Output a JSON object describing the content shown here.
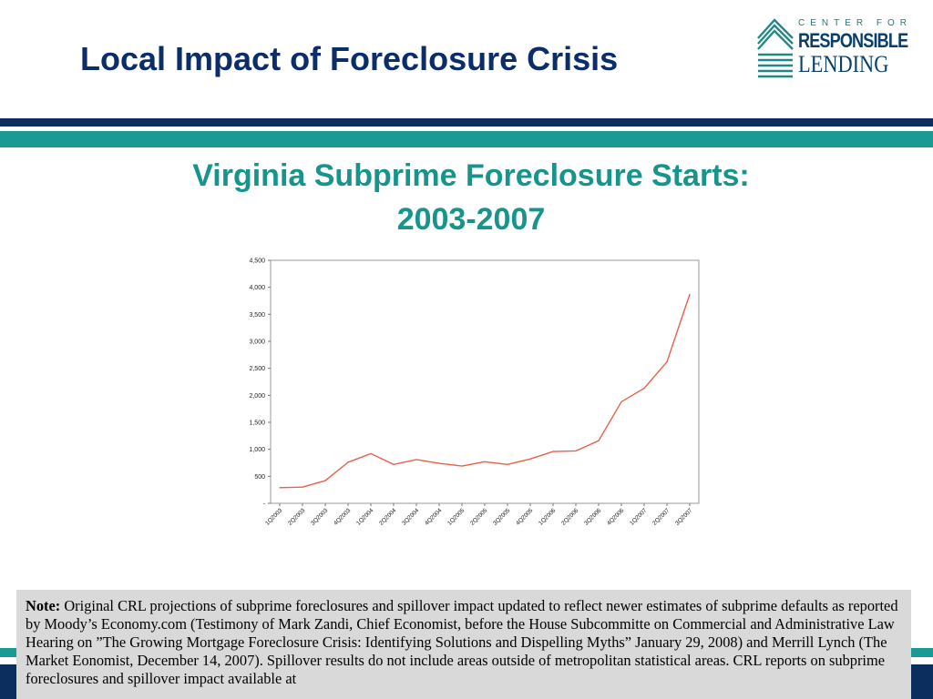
{
  "slide": {
    "title": "Local Impact of Foreclosure Crisis"
  },
  "logo": {
    "line1": "CENTER FOR",
    "line2": "RESPONSIBLE",
    "line3": "LENDING"
  },
  "chart_title": {
    "line1": "Virginia Subprime Foreclosure Starts:",
    "line2": "2003-2007"
  },
  "note": {
    "label": "Note:",
    "text": "Original CRL projections of subprime foreclosures and spillover impact updated to reflect newer estimates of subprime defaults as reported by Moody’s Economy.com (Testimony of Mark Zandi, Chief Economist, before the House Subcommitte on Commercial and Administrative Law Hearing on ”The Growing Mortgage Foreclosure Crisis: Identifying Solutions and Dispelling Myths” January 29, 2008) and Merrill Lynch (The Market Eonomist, December 14, 2007).  Spillover results do not include areas outside of metropolitan statistical areas.  CRL reports on subprime foreclosures and spillover impact available at"
  },
  "colors": {
    "navy": "#0b2e5e",
    "teal": "#1a9a92",
    "line": "#e8604a"
  },
  "chart_data": {
    "type": "line",
    "title": "",
    "xlabel": "",
    "ylabel": "",
    "ylim": [
      0,
      4500
    ],
    "yticks": [
      0,
      500,
      1000,
      1500,
      2000,
      2500,
      3000,
      3500,
      4000,
      4500
    ],
    "ytick_labels": [
      "-",
      "500",
      "1,000",
      "1,500",
      "2,000",
      "2,500",
      "3,000",
      "3,500",
      "4,000",
      "4,500"
    ],
    "categories": [
      "1Q2003",
      "2Q2003",
      "3Q2003",
      "4Q2003",
      "1Q2004",
      "2Q2004",
      "3Q2004",
      "4Q2004",
      "1Q2005",
      "2Q2005",
      "3Q2005",
      "4Q2005",
      "1Q2006",
      "2Q2006",
      "3Q2006",
      "4Q2006",
      "1Q2007",
      "2Q2007",
      "3Q2007"
    ],
    "series": [
      {
        "values": [
          290,
          300,
          420,
          760,
          920,
          720,
          810,
          740,
          690,
          770,
          720,
          820,
          960,
          970,
          1160,
          1880,
          2130,
          2620,
          3870
        ]
      }
    ],
    "grid": false,
    "legend": "none"
  }
}
